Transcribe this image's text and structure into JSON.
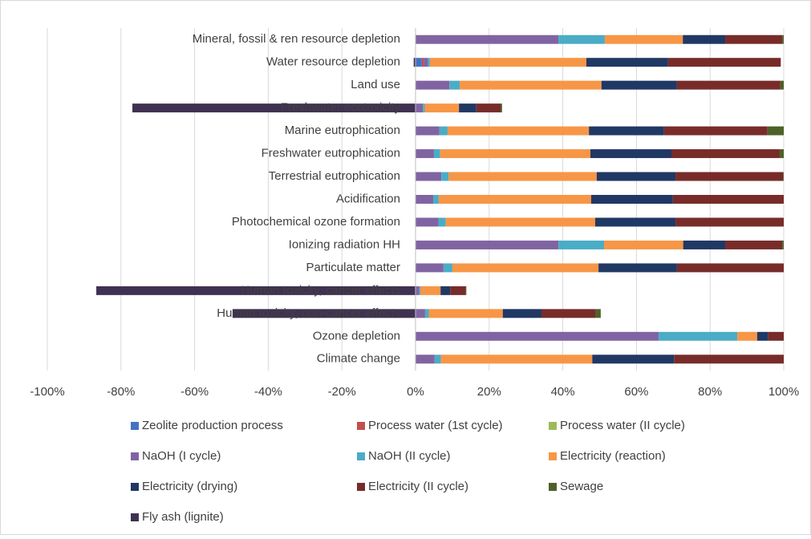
{
  "chart_data": {
    "type": "stacked_barh",
    "categories": [
      "Mineral, fossil & ren resource depletion",
      "Water resource depletion",
      "Land use",
      "Freshwater ecotoxicity",
      "Marine eutrophication",
      "Freshwater eutrophication",
      "Terrestrial eutrophication",
      "Acidification",
      "Photochemical ozone formation",
      "Ionizing radiation HH",
      "Particulate matter",
      "Human toxicity, cancer effects",
      "Human toxicity, non-cancer effects",
      "Ozone depletion",
      "Climate change"
    ],
    "series": [
      {
        "name": "Zeolite production process",
        "color": "#4472c4",
        "values": [
          0,
          1.7,
          0,
          0,
          0,
          0,
          0,
          0,
          0,
          0,
          0,
          0,
          0,
          0,
          0
        ]
      },
      {
        "name": "Process water (1st cycle)",
        "color": "#c0504d",
        "values": [
          0,
          0.5,
          0,
          0,
          0,
          0,
          0,
          0,
          0,
          0,
          0,
          0,
          0,
          0,
          0
        ]
      },
      {
        "name": "Process water (II cycle)",
        "color": "#9bbb59",
        "values": [
          0,
          0,
          0,
          0,
          0,
          0,
          0,
          0,
          0,
          0,
          0,
          0,
          0,
          0,
          0
        ]
      },
      {
        "name": "NaOH (I cycle)",
        "color": "#8064a2",
        "values": [
          38.8,
          1.2,
          9.2,
          2.0,
          6.5,
          5.0,
          7.0,
          4.8,
          6.2,
          38.8,
          7.6,
          1.0,
          2.6,
          66.0,
          5.2
        ]
      },
      {
        "name": "NaOH (II cycle)",
        "color": "#4bacc6",
        "values": [
          12.6,
          0.5,
          2.8,
          0.5,
          2.2,
          1.7,
          2.0,
          1.5,
          2.0,
          12.4,
          2.4,
          0.3,
          1.0,
          21.4,
          1.7
        ]
      },
      {
        "name": "Electricity (reaction)",
        "color": "#f79646",
        "values": [
          21.2,
          42.5,
          38.5,
          9.3,
          38.4,
          40.8,
          40.2,
          41.4,
          40.6,
          21.5,
          39.7,
          5.5,
          20.1,
          5.4,
          41.1
        ]
      },
      {
        "name": "Electricity (drying)",
        "color": "#203864",
        "values": [
          11.5,
          22.2,
          20.5,
          4.7,
          20.4,
          22.0,
          21.4,
          22.2,
          21.8,
          11.4,
          21.3,
          2.6,
          10.5,
          3.0,
          22.2
        ]
      },
      {
        "name": "Electricity (II cycle)",
        "color": "#772c2a",
        "values": [
          15.5,
          30.6,
          28.1,
          6.6,
          28.1,
          29.4,
          29.2,
          30.1,
          29.4,
          15.5,
          29.0,
          4.2,
          14.6,
          4.2,
          29.8
        ]
      },
      {
        "name": "Sewage",
        "color": "#4e6128",
        "values": [
          0.4,
          0,
          0.9,
          0.4,
          4.4,
          1.1,
          0.2,
          0,
          0,
          0.4,
          0,
          0.2,
          1.5,
          0,
          0
        ]
      },
      {
        "name": "Fly ash (lignite)",
        "color": "#3f3151",
        "values": [
          0,
          -0.5,
          0,
          -76.9,
          0,
          0,
          0,
          0,
          0,
          0,
          0,
          -86.7,
          -49.7,
          0,
          0
        ]
      }
    ],
    "xlim": [
      -100,
      100
    ],
    "xticks": [
      {
        "value": -100,
        "label": "-100%"
      },
      {
        "value": -80,
        "label": "-80%"
      },
      {
        "value": -60,
        "label": "-60%"
      },
      {
        "value": -40,
        "label": "-40%"
      },
      {
        "value": -20,
        "label": "-20%"
      },
      {
        "value": 0,
        "label": "0%"
      },
      {
        "value": 20,
        "label": "20%"
      },
      {
        "value": 40,
        "label": "40%"
      },
      {
        "value": 60,
        "label": "60%"
      },
      {
        "value": 80,
        "label": "80%"
      },
      {
        "value": 100,
        "label": "100%"
      }
    ],
    "grid": true,
    "legend": "bottom"
  }
}
